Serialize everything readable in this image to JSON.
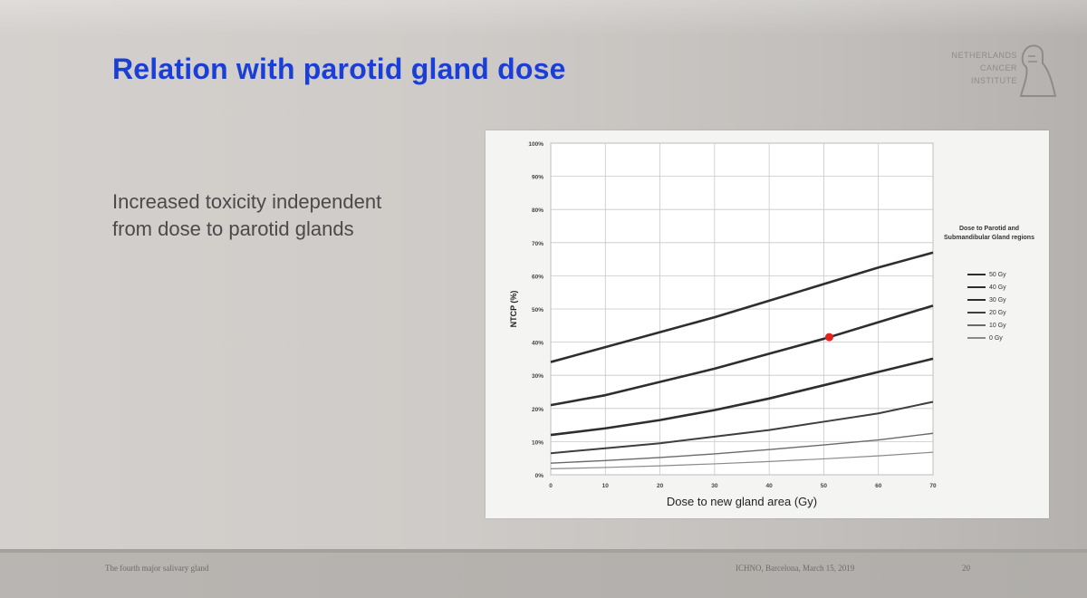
{
  "slide": {
    "title": "Relation with parotid gland dose",
    "bullet_line1": "Increased toxicity independent",
    "bullet_line2": "from dose to parotid glands"
  },
  "logo": {
    "line1": "NETHERLANDS",
    "line2": "CANCER",
    "line3": "INSTITUTE"
  },
  "footer": {
    "left": "The fourth major salivary gland",
    "center": "ICHNO, Barcelona, March 15, 2019",
    "page": "20"
  },
  "colors": {
    "title": "#1a3fd6",
    "highlight_point": "#e8201a"
  },
  "chart_data": {
    "type": "line",
    "xlabel": "Dose to new gland area (Gy)",
    "ylabel": "NTCP (%)",
    "xlim": [
      0,
      70
    ],
    "ylim": [
      0,
      100
    ],
    "x_ticks": [
      "0",
      "10",
      "20",
      "30",
      "40",
      "50",
      "60",
      "70"
    ],
    "y_ticks": [
      "0%",
      "10%",
      "20%",
      "30%",
      "40%",
      "50%",
      "60%",
      "70%",
      "80%",
      "90%",
      "100%"
    ],
    "grid": true,
    "legend_title": "Dose to Parotid and Submandibular Gland regions",
    "legend_position": "right",
    "x": [
      0,
      10,
      20,
      30,
      40,
      50,
      60,
      70
    ],
    "series": [
      {
        "name": "50 Gy",
        "values": [
          34,
          38.5,
          43,
          47.5,
          52.5,
          57.5,
          62.5,
          67
        ]
      },
      {
        "name": "40 Gy",
        "values": [
          21,
          24,
          28,
          32,
          36.5,
          41,
          46,
          51
        ]
      },
      {
        "name": "30 Gy",
        "values": [
          12,
          14,
          16.5,
          19.5,
          23,
          27,
          31,
          35
        ]
      },
      {
        "name": "20 Gy",
        "values": [
          6.5,
          8,
          9.5,
          11.5,
          13.5,
          16,
          18.5,
          22
        ]
      },
      {
        "name": "10 Gy",
        "values": [
          3.5,
          4.3,
          5.2,
          6.3,
          7.6,
          9,
          10.5,
          12.5
        ]
      },
      {
        "name": "0 Gy",
        "values": [
          1.8,
          2.2,
          2.7,
          3.3,
          4,
          4.8,
          5.7,
          6.8
        ]
      }
    ],
    "series_styles": [
      {
        "color": "#2e2e2e",
        "width": 2.6
      },
      {
        "color": "#2e2e2e",
        "width": 2.6
      },
      {
        "color": "#2e2e2e",
        "width": 2.6
      },
      {
        "color": "#3e3e3e",
        "width": 2.0
      },
      {
        "color": "#6a6a6a",
        "width": 1.4
      },
      {
        "color": "#8a8a8a",
        "width": 1.2
      }
    ],
    "highlight_point": {
      "x": 51,
      "y": 41.5
    }
  }
}
